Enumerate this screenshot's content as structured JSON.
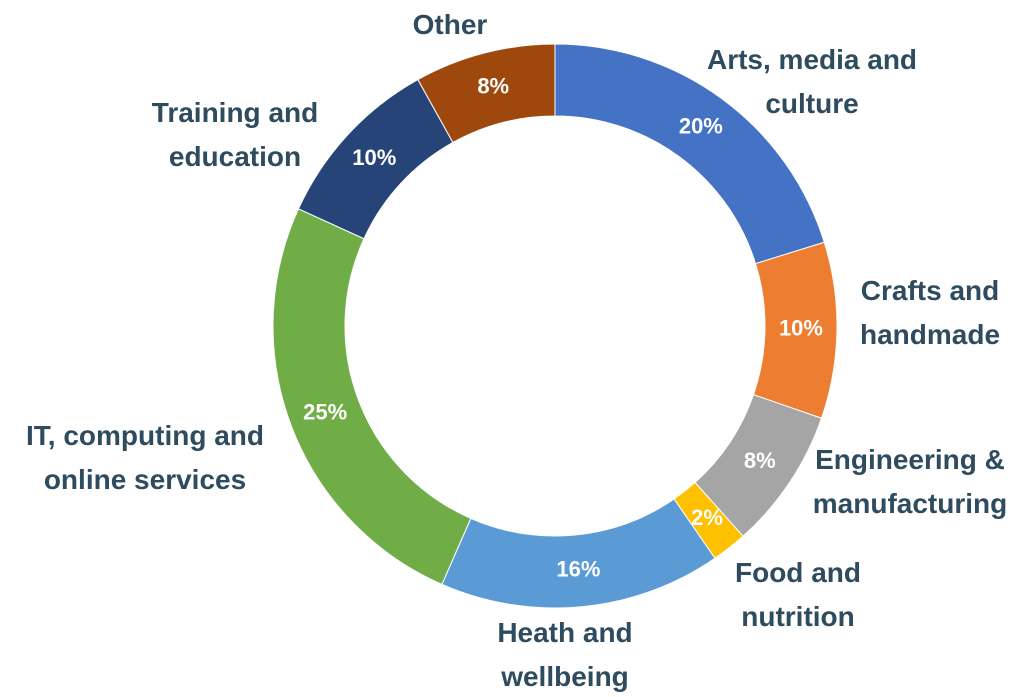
{
  "chart_data": {
    "type": "donut",
    "categories": [
      "Arts, media and culture",
      "Crafts and handmade",
      "Engineering & manufacturing",
      "Food and nutrition",
      "Heath and wellbeing",
      "IT, computing and online services",
      "Training and education",
      "Other"
    ],
    "values": [
      20,
      10,
      8,
      2,
      16,
      25,
      10,
      8
    ],
    "value_labels": [
      "20%",
      "10%",
      "8%",
      "2%",
      "16%",
      "25%",
      "10%",
      "8%"
    ],
    "colors": [
      "#4472c4",
      "#ed7d31",
      "#a5a5a5",
      "#ffc000",
      "#5b9bd5",
      "#70ad47",
      "#264478",
      "#9e480e"
    ]
  }
}
